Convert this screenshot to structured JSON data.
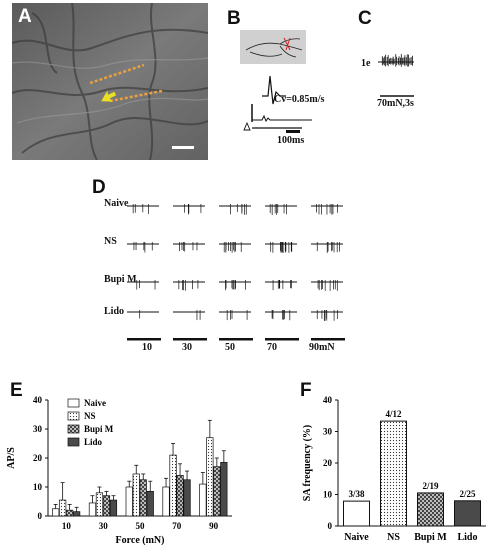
{
  "panel_letters": {
    "A": "A",
    "B": "B",
    "C": "C",
    "D": "D",
    "E": "E",
    "F": "F"
  },
  "panel_b": {
    "cv_label": "Cv=0.85m/s",
    "scale_label": "100ms"
  },
  "panel_c": {
    "trace_label": "1e",
    "scale_label": "70mN,3s"
  },
  "panel_d": {
    "rows": [
      "Naive",
      "NS",
      "Bupi M",
      "Lido"
    ],
    "forces": [
      "10",
      "30",
      "50",
      "70",
      "90mN"
    ]
  },
  "colors": {
    "photo_bg": "#6e6e6e",
    "fiber_markers": "#e8a040",
    "arrow": "#e8e020"
  },
  "chart_data": [
    {
      "panel": "E",
      "type": "bar",
      "xlabel": "Force (mN)",
      "ylabel": "AP/S",
      "ylim": [
        0,
        40
      ],
      "yticks": [
        "0",
        "10",
        "20",
        "30",
        "40"
      ],
      "categories": [
        "10",
        "30",
        "50",
        "70",
        "90"
      ],
      "legend_position": "top-left",
      "series": [
        {
          "name": "Naive",
          "fill": "white",
          "values": [
            2.5,
            4.5,
            10,
            10,
            11
          ],
          "errors": [
            1.5,
            2.5,
            2,
            3,
            4
          ]
        },
        {
          "name": "NS",
          "fill": "dots",
          "values": [
            5.5,
            8,
            14.5,
            21,
            27
          ],
          "errors": [
            6,
            2,
            3,
            4,
            6
          ]
        },
        {
          "name": "Bupi M",
          "fill": "checker",
          "values": [
            2,
            7,
            12.5,
            14,
            17
          ],
          "errors": [
            2,
            1.5,
            2,
            4,
            3
          ]
        },
        {
          "name": "Lido",
          "fill": "dark",
          "values": [
            1.5,
            5.5,
            8.5,
            12.5,
            18.5
          ],
          "errors": [
            1.5,
            1.5,
            3.5,
            3,
            4
          ]
        }
      ]
    },
    {
      "panel": "F",
      "type": "bar",
      "xlabel": "",
      "ylabel": "SA frequency (%)",
      "ylim": [
        0,
        40
      ],
      "yticks": [
        "0",
        "10",
        "20",
        "30",
        "40"
      ],
      "categories": [
        "Naive",
        "NS",
        "Bupi M",
        "Lido"
      ],
      "values": [
        7.9,
        33.3,
        10.5,
        8.0
      ],
      "bar_labels": [
        "3/38",
        "4/12",
        "2/19",
        "2/25"
      ]
    }
  ]
}
